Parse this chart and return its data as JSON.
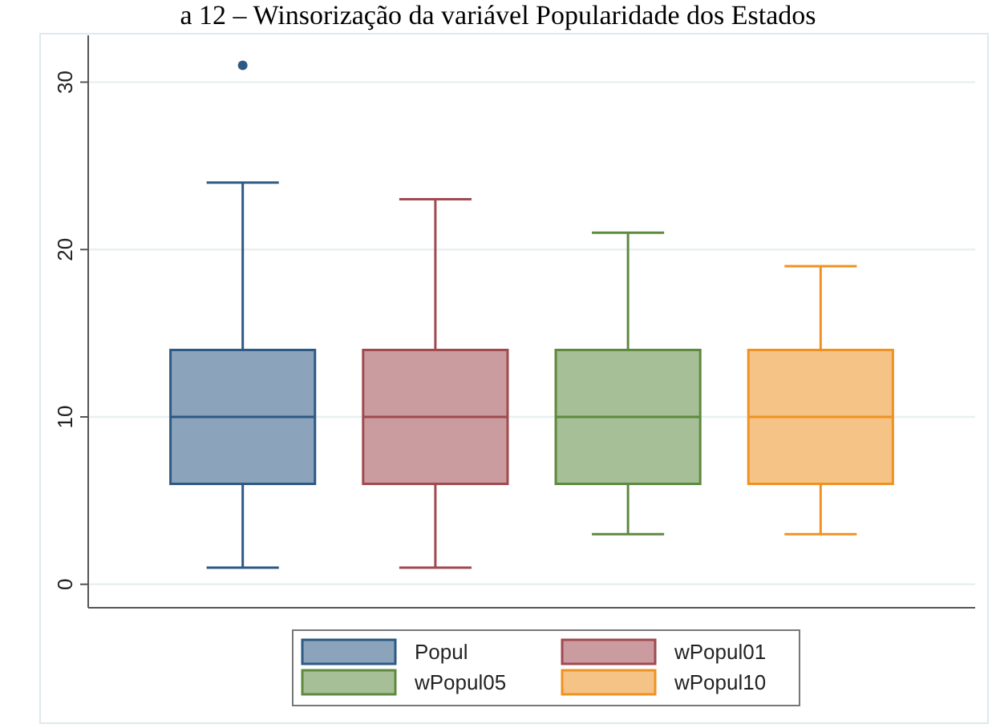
{
  "chart_data": {
    "type": "box",
    "title": "a 12 – Winsorização da variável Popularidade dos Estados",
    "categories": [
      null
    ],
    "ylim": [
      -1.4,
      32.8
    ],
    "yticks": [
      0,
      10,
      20,
      30
    ],
    "grid": "y",
    "legend": "bottom",
    "series": [
      {
        "name": "Popul",
        "color": "#2d5a84",
        "boxes": [
          {
            "low": 1,
            "q1": 6,
            "median": 10,
            "q3": 14,
            "high": 24,
            "outliers": [
              31
            ]
          }
        ]
      },
      {
        "name": "wPopul01",
        "color": "#a04a50",
        "boxes": [
          {
            "low": 1,
            "q1": 6,
            "median": 10,
            "q3": 14,
            "high": 23
          }
        ]
      },
      {
        "name": "wPopul05",
        "color": "#5e8a40",
        "boxes": [
          {
            "low": 3,
            "q1": 6,
            "median": 10,
            "q3": 14,
            "high": 21
          }
        ]
      },
      {
        "name": "wPopul10",
        "color": "#ef9223",
        "boxes": [
          {
            "low": 3,
            "q1": 6,
            "median": 10,
            "q3": 14,
            "high": 19
          }
        ]
      }
    ]
  }
}
